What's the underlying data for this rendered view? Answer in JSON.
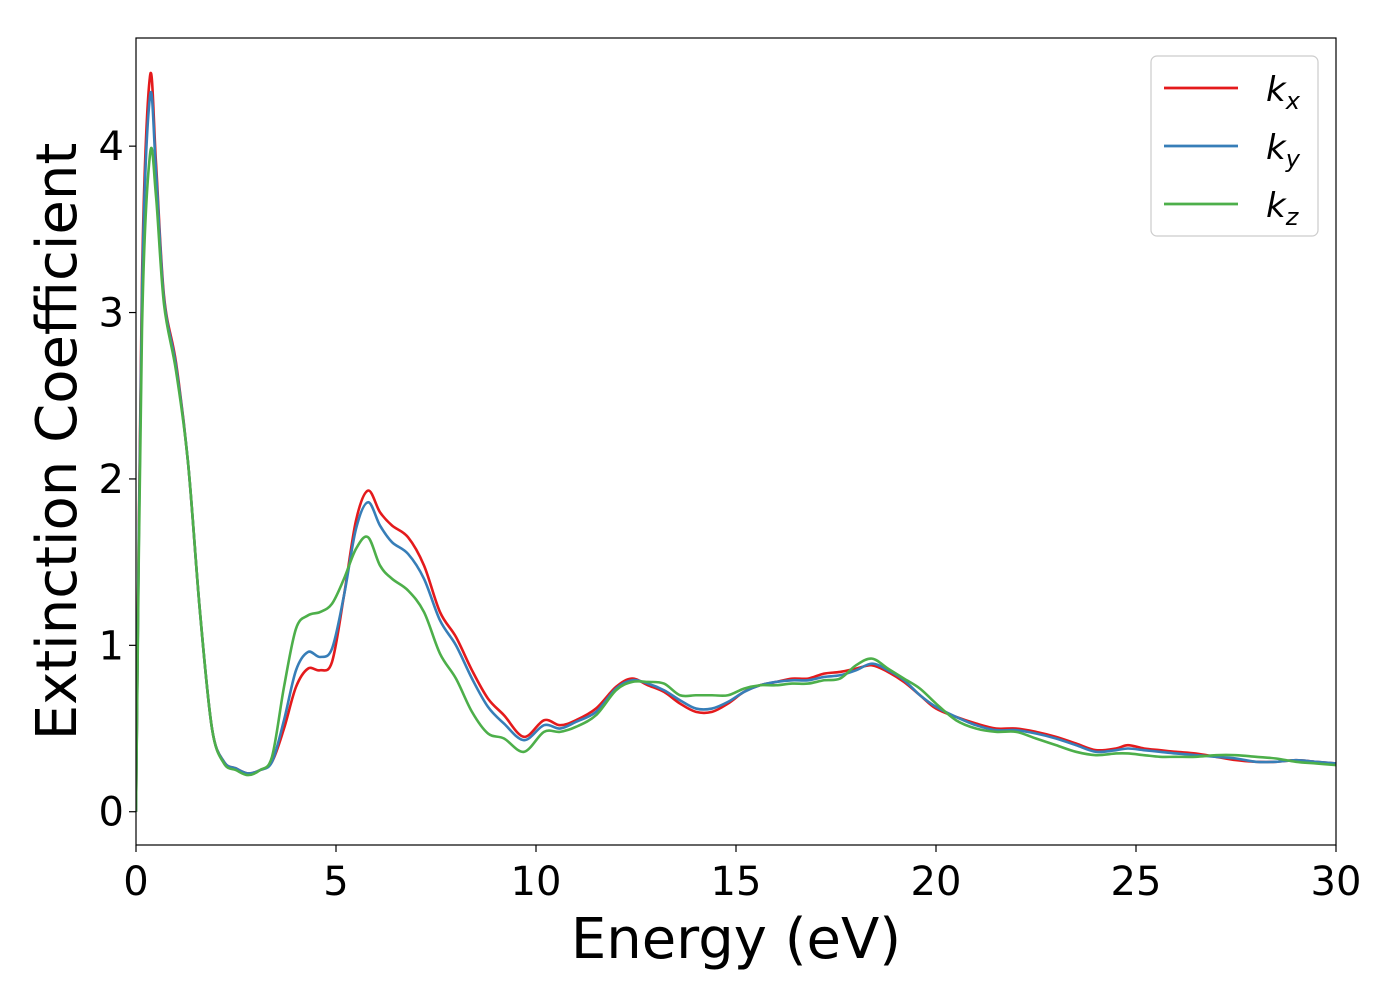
{
  "chart_data": {
    "type": "line",
    "xlabel": "Energy (eV)",
    "ylabel": "Extinction Coefficient",
    "xlim": [
      0,
      30
    ],
    "ylim": [
      -0.2,
      4.65
    ],
    "xticks": [
      0,
      5,
      10,
      15,
      20,
      25,
      30
    ],
    "yticks": [
      0,
      1,
      2,
      3,
      4
    ],
    "grid": false,
    "legend_position": "top-right",
    "series": [
      {
        "name": "k_x",
        "label_base": "k",
        "label_sub": "x",
        "color": "#e41a1c",
        "x": [
          0,
          0.15,
          0.35,
          0.5,
          0.7,
          1.0,
          1.3,
          1.6,
          1.9,
          2.2,
          2.5,
          2.8,
          3.1,
          3.4,
          3.7,
          4.0,
          4.3,
          4.6,
          4.9,
          5.2,
          5.5,
          5.8,
          6.1,
          6.4,
          6.8,
          7.2,
          7.6,
          8.0,
          8.4,
          8.8,
          9.2,
          9.7,
          10.2,
          10.6,
          11.0,
          11.5,
          12.0,
          12.4,
          12.8,
          13.2,
          13.6,
          14.0,
          14.4,
          14.8,
          15.2,
          15.6,
          16.0,
          16.4,
          16.8,
          17.2,
          17.6,
          18.0,
          18.4,
          18.8,
          19.2,
          19.6,
          20.0,
          20.5,
          21.0,
          21.5,
          22.0,
          22.5,
          23.0,
          23.5,
          24.0,
          24.5,
          24.8,
          25.2,
          25.6,
          26.0,
          26.5,
          27.0,
          27.5,
          28.0,
          28.5,
          29.0,
          29.5,
          30.0
        ],
        "y": [
          0,
          3.2,
          4.42,
          3.9,
          3.1,
          2.7,
          2.1,
          1.2,
          0.5,
          0.3,
          0.26,
          0.23,
          0.25,
          0.3,
          0.5,
          0.75,
          0.86,
          0.85,
          0.9,
          1.3,
          1.75,
          1.93,
          1.8,
          1.72,
          1.65,
          1.48,
          1.2,
          1.05,
          0.85,
          0.68,
          0.58,
          0.45,
          0.55,
          0.52,
          0.55,
          0.62,
          0.75,
          0.8,
          0.76,
          0.72,
          0.65,
          0.6,
          0.6,
          0.65,
          0.72,
          0.76,
          0.78,
          0.8,
          0.8,
          0.83,
          0.84,
          0.86,
          0.88,
          0.84,
          0.78,
          0.7,
          0.62,
          0.57,
          0.53,
          0.5,
          0.5,
          0.48,
          0.45,
          0.41,
          0.37,
          0.38,
          0.4,
          0.38,
          0.37,
          0.36,
          0.35,
          0.33,
          0.31,
          0.3,
          0.3,
          0.31,
          0.3,
          0.29
        ]
      },
      {
        "name": "k_y",
        "label_base": "k",
        "label_sub": "y",
        "color": "#377eb8",
        "x": [
          0,
          0.15,
          0.35,
          0.5,
          0.7,
          1.0,
          1.3,
          1.6,
          1.9,
          2.2,
          2.5,
          2.8,
          3.1,
          3.4,
          3.7,
          4.0,
          4.3,
          4.6,
          4.9,
          5.2,
          5.5,
          5.8,
          6.1,
          6.4,
          6.8,
          7.2,
          7.6,
          8.0,
          8.4,
          8.8,
          9.2,
          9.7,
          10.2,
          10.6,
          11.0,
          11.5,
          12.0,
          12.4,
          12.8,
          13.2,
          13.6,
          14.0,
          14.4,
          14.8,
          15.2,
          15.6,
          16.0,
          16.4,
          16.8,
          17.2,
          17.6,
          18.0,
          18.4,
          18.8,
          19.2,
          19.6,
          20.0,
          20.5,
          21.0,
          21.5,
          22.0,
          22.5,
          23.0,
          23.5,
          24.0,
          24.5,
          24.8,
          25.2,
          25.6,
          26.0,
          26.5,
          27.0,
          27.5,
          28.0,
          28.5,
          29.0,
          29.5,
          30.0
        ],
        "y": [
          0,
          3.1,
          4.3,
          3.85,
          3.08,
          2.68,
          2.1,
          1.2,
          0.5,
          0.3,
          0.26,
          0.23,
          0.25,
          0.3,
          0.55,
          0.85,
          0.96,
          0.93,
          0.98,
          1.3,
          1.7,
          1.86,
          1.72,
          1.62,
          1.55,
          1.4,
          1.15,
          1.0,
          0.8,
          0.63,
          0.53,
          0.43,
          0.52,
          0.5,
          0.54,
          0.6,
          0.74,
          0.79,
          0.77,
          0.73,
          0.67,
          0.62,
          0.62,
          0.66,
          0.72,
          0.76,
          0.78,
          0.79,
          0.79,
          0.81,
          0.82,
          0.85,
          0.89,
          0.85,
          0.79,
          0.7,
          0.63,
          0.57,
          0.52,
          0.49,
          0.49,
          0.47,
          0.44,
          0.4,
          0.36,
          0.37,
          0.38,
          0.37,
          0.36,
          0.35,
          0.34,
          0.33,
          0.32,
          0.3,
          0.3,
          0.31,
          0.3,
          0.29
        ]
      },
      {
        "name": "k_z",
        "label_base": "k",
        "label_sub": "z",
        "color": "#4daf4a",
        "x": [
          0,
          0.15,
          0.35,
          0.5,
          0.7,
          1.0,
          1.3,
          1.6,
          1.9,
          2.2,
          2.5,
          2.8,
          3.1,
          3.4,
          3.7,
          4.0,
          4.3,
          4.6,
          4.9,
          5.2,
          5.5,
          5.8,
          6.1,
          6.4,
          6.8,
          7.2,
          7.6,
          8.0,
          8.4,
          8.8,
          9.2,
          9.7,
          10.2,
          10.6,
          11.0,
          11.5,
          12.0,
          12.4,
          12.8,
          13.2,
          13.6,
          14.0,
          14.4,
          14.8,
          15.2,
          15.6,
          16.0,
          16.4,
          16.8,
          17.2,
          17.6,
          18.0,
          18.4,
          18.8,
          19.2,
          19.6,
          20.0,
          20.5,
          21.0,
          21.5,
          22.0,
          22.5,
          23.0,
          23.5,
          24.0,
          24.5,
          24.8,
          25.2,
          25.6,
          26.0,
          26.5,
          27.0,
          27.5,
          28.0,
          28.5,
          29.0,
          29.5,
          30.0
        ],
        "y": [
          0,
          2.9,
          3.95,
          3.7,
          3.05,
          2.65,
          2.1,
          1.2,
          0.5,
          0.29,
          0.25,
          0.22,
          0.25,
          0.33,
          0.75,
          1.1,
          1.18,
          1.2,
          1.25,
          1.4,
          1.58,
          1.65,
          1.48,
          1.4,
          1.33,
          1.2,
          0.95,
          0.8,
          0.6,
          0.47,
          0.44,
          0.36,
          0.48,
          0.48,
          0.51,
          0.58,
          0.73,
          0.78,
          0.78,
          0.77,
          0.7,
          0.7,
          0.7,
          0.7,
          0.74,
          0.76,
          0.76,
          0.77,
          0.77,
          0.79,
          0.8,
          0.88,
          0.92,
          0.86,
          0.8,
          0.74,
          0.65,
          0.55,
          0.5,
          0.48,
          0.48,
          0.44,
          0.4,
          0.36,
          0.34,
          0.35,
          0.35,
          0.34,
          0.33,
          0.33,
          0.33,
          0.34,
          0.34,
          0.33,
          0.32,
          0.3,
          0.29,
          0.28
        ]
      }
    ]
  }
}
